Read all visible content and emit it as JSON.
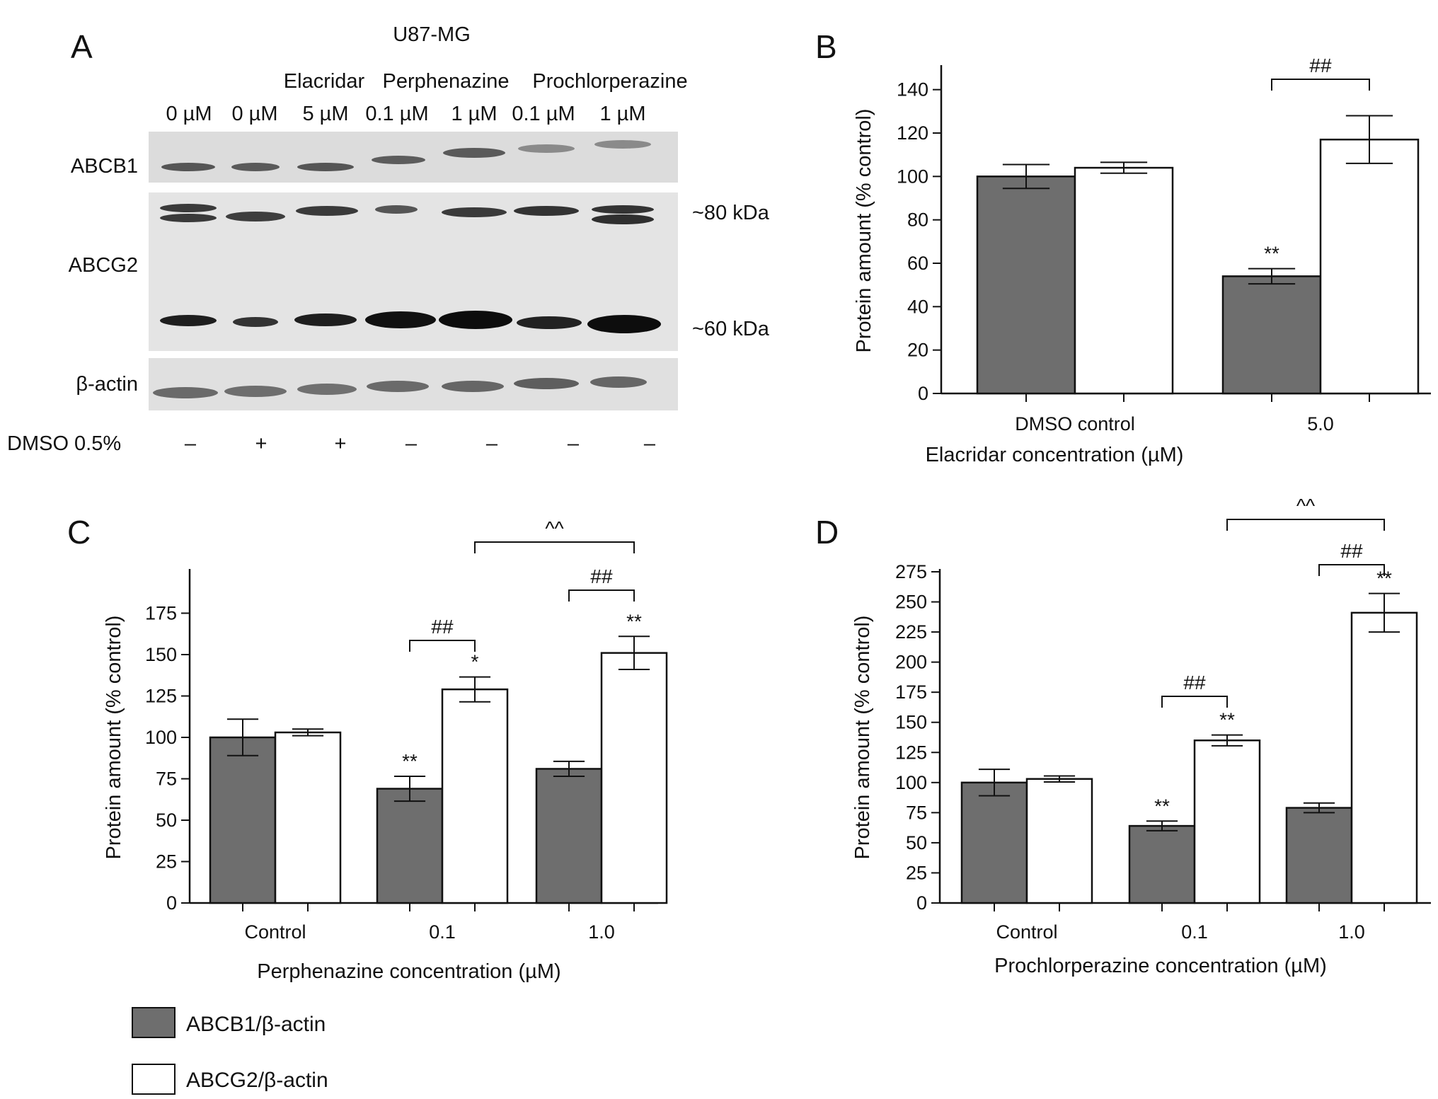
{
  "panel_a": {
    "letter": "A",
    "cell_line": "U87-MG",
    "drug_headers": [
      "Elacridar",
      "Perphenazine",
      "Prochlorperazine"
    ],
    "concentrations": [
      "0 µM",
      "0 µM",
      "5 µM",
      "0.1 µM",
      "1 µM",
      "0.1 µM",
      "1 µM"
    ],
    "row_labels": [
      "ABCB1",
      "ABCG2",
      "β-actin"
    ],
    "kda_labels": [
      "~80 kDa",
      "~60 kDa"
    ],
    "dmso_label": "DMSO 0.5%",
    "dmso_signs": [
      "–",
      "+",
      "+",
      "–",
      "–",
      "–",
      "–"
    ]
  },
  "legend": {
    "items": [
      {
        "label": "ABCB1/β-actin",
        "color": "#6e6e6e"
      },
      {
        "label": "ABCG2/β-actin",
        "color": "#ffffff"
      }
    ]
  },
  "chart_data": [
    {
      "panel": "B",
      "type": "bar",
      "categories": [
        "DMSO control",
        "5.0"
      ],
      "xlabel": "Elacridar concentration (µM)",
      "ylabel": "Protein amount (% control)",
      "ylim": [
        0,
        150
      ],
      "yticks": [
        "0",
        "20",
        "40",
        "60",
        "80",
        "100",
        "120",
        "140"
      ],
      "series": [
        {
          "name": "ABCB1/β-actin",
          "color": "#6e6e6e",
          "values": [
            100,
            54
          ],
          "errors": [
            5.5,
            3.5
          ]
        },
        {
          "name": "ABCG2/β-actin",
          "color": "#ffffff",
          "values": [
            104,
            117
          ],
          "errors": [
            2.5,
            11
          ]
        }
      ],
      "annotations": [
        {
          "text": "**",
          "category": 1,
          "series": 0
        },
        {
          "text": "##",
          "bracket": [
            [
              1,
              0
            ],
            [
              1,
              1
            ]
          ]
        }
      ]
    },
    {
      "panel": "C",
      "type": "bar",
      "categories": [
        "Control",
        "0.1",
        "1.0"
      ],
      "xlabel": "Perphenazine concentration (µM)",
      "ylabel": "Protein amount (% control)",
      "ylim": [
        0,
        200
      ],
      "yticks": [
        "0",
        "25",
        "50",
        "75",
        "100",
        "125",
        "150",
        "175"
      ],
      "series": [
        {
          "name": "ABCB1/β-actin",
          "color": "#6e6e6e",
          "values": [
            100,
            69,
            81
          ],
          "errors": [
            11,
            7.5,
            4.5
          ]
        },
        {
          "name": "ABCG2/β-actin",
          "color": "#ffffff",
          "values": [
            103,
            129,
            151
          ],
          "errors": [
            2,
            7.5,
            10
          ]
        }
      ],
      "annotations": [
        {
          "text": "**",
          "category": 1,
          "series": 0
        },
        {
          "text": "*",
          "category": 1,
          "series": 1
        },
        {
          "text": "**",
          "category": 2,
          "series": 1
        },
        {
          "text": "##",
          "bracket": [
            [
              1,
              0
            ],
            [
              1,
              1
            ]
          ]
        },
        {
          "text": "##",
          "bracket": [
            [
              2,
              0
            ],
            [
              2,
              1
            ]
          ]
        },
        {
          "text": "^^",
          "bracket": [
            [
              1,
              1
            ],
            [
              2,
              1
            ]
          ]
        }
      ]
    },
    {
      "panel": "D",
      "type": "bar",
      "categories": [
        "Control",
        "0.1",
        "1.0"
      ],
      "xlabel": "Prochlorperazine concentration (µM)",
      "ylabel": "Protein amount (% control)",
      "ylim": [
        0,
        275
      ],
      "yticks": [
        "0",
        "25",
        "50",
        "75",
        "100",
        "125",
        "150",
        "175",
        "200",
        "225",
        "250",
        "275"
      ],
      "series": [
        {
          "name": "ABCB1/β-actin",
          "color": "#6e6e6e",
          "values": [
            100,
            64,
            79
          ],
          "errors": [
            11,
            4,
            4
          ]
        },
        {
          "name": "ABCG2/β-actin",
          "color": "#ffffff",
          "values": [
            103,
            135,
            241
          ],
          "errors": [
            2.5,
            4.5,
            16
          ]
        }
      ],
      "annotations": [
        {
          "text": "**",
          "category": 1,
          "series": 0
        },
        {
          "text": "**",
          "category": 1,
          "series": 1
        },
        {
          "text": "**",
          "category": 2,
          "series": 1
        },
        {
          "text": "##",
          "bracket": [
            [
              1,
              0
            ],
            [
              1,
              1
            ]
          ]
        },
        {
          "text": "##",
          "bracket": [
            [
              2,
              0
            ],
            [
              2,
              1
            ]
          ]
        },
        {
          "text": "^^",
          "bracket": [
            [
              1,
              1
            ],
            [
              2,
              1
            ]
          ]
        }
      ]
    }
  ]
}
